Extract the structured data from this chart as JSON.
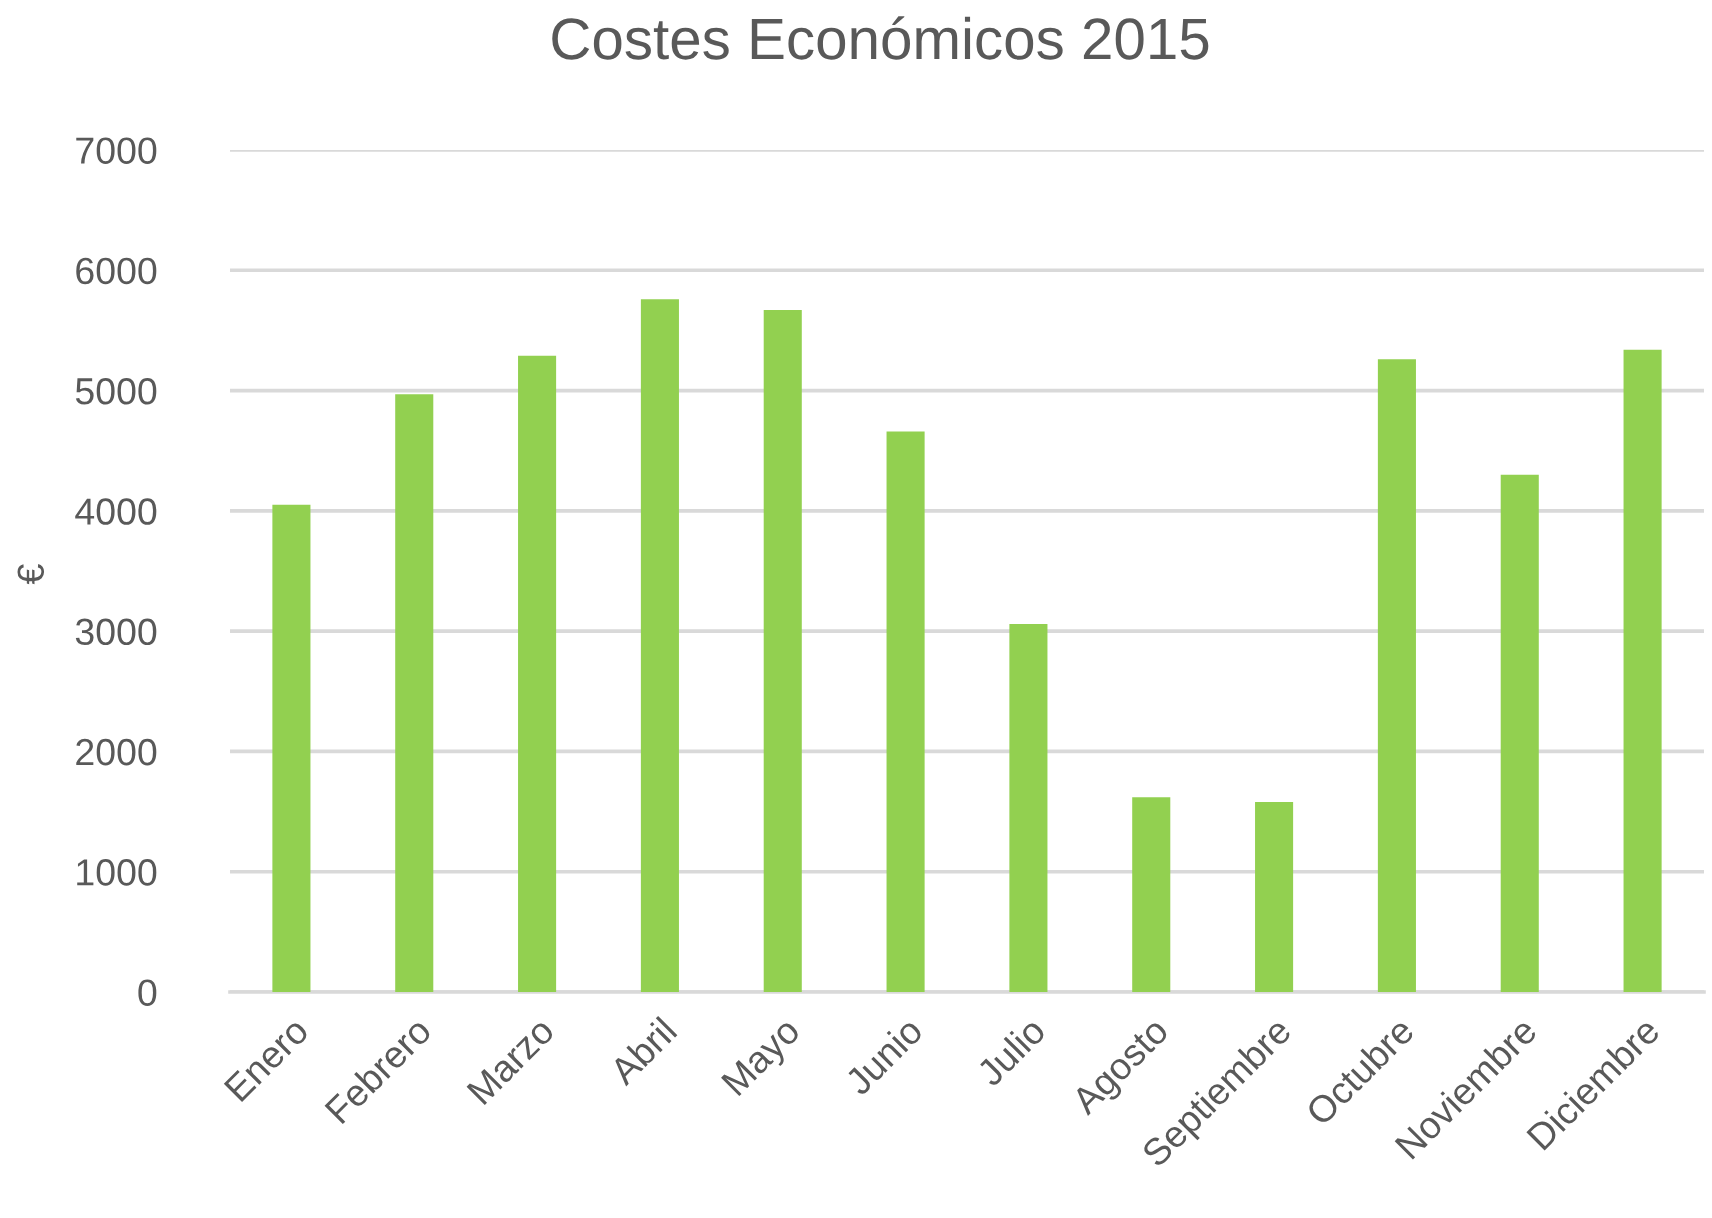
{
  "chart_data": {
    "type": "bar",
    "title": "Costes Económicos 2015",
    "ylabel": "€",
    "categories": [
      "Enero",
      "Febrero",
      "Marzo",
      "Abril",
      "Mayo",
      "Junio",
      "Julio",
      "Agosto",
      "Septiembre",
      "Octubre",
      "Noviembre",
      "Diciembre"
    ],
    "values": [
      4050,
      4970,
      5290,
      5760,
      5670,
      4660,
      3060,
      1620,
      1580,
      5260,
      4300,
      5340
    ],
    "color": "#92d050",
    "ylim": [
      0,
      7000
    ],
    "yticks": [
      0,
      1000,
      2000,
      3000,
      4000,
      5000,
      6000,
      7000
    ],
    "grid": "y",
    "legend": false
  }
}
